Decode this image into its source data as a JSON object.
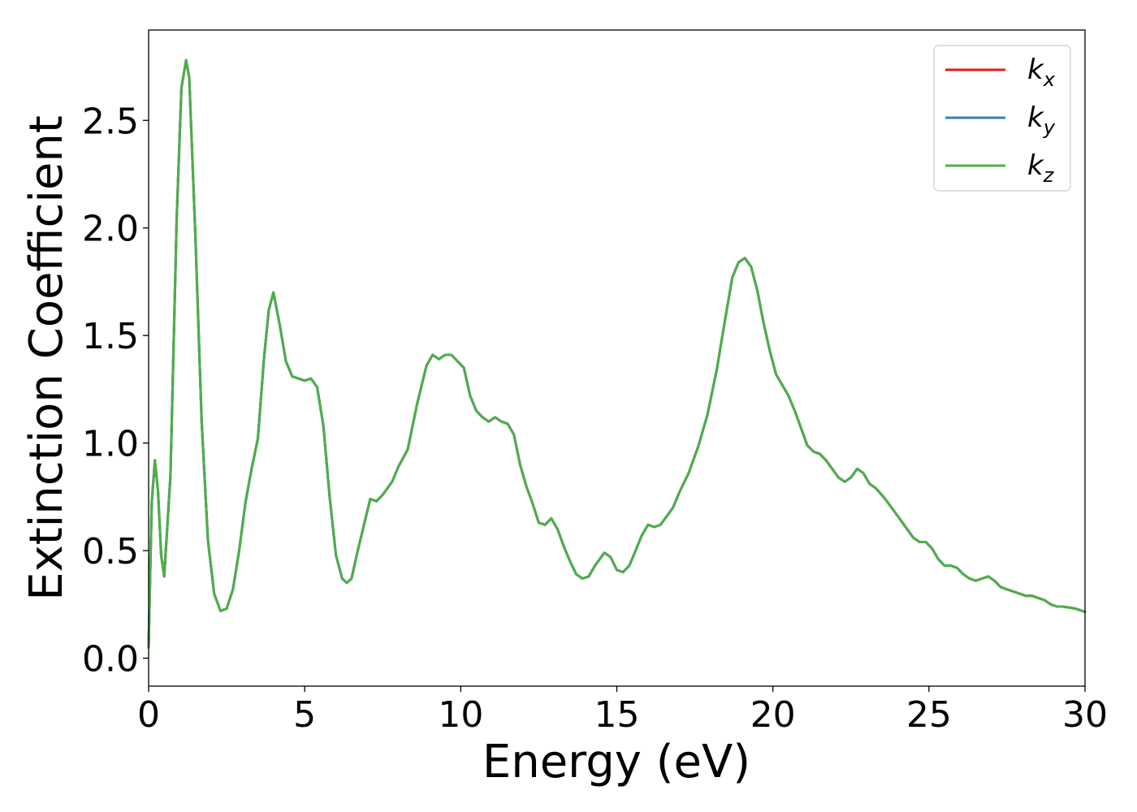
{
  "chart_data": {
    "type": "line",
    "xlabel": "Energy (eV)",
    "ylabel": "Extinction Coefficient",
    "xlim": [
      0,
      30
    ],
    "ylim": [
      -0.13,
      2.92
    ],
    "xticks": [
      0,
      5,
      10,
      15,
      20,
      25,
      30
    ],
    "xtick_labels": [
      "0",
      "5",
      "10",
      "15",
      "20",
      "25",
      "30"
    ],
    "yticks": [
      0.0,
      0.5,
      1.0,
      1.5,
      2.0,
      2.5
    ],
    "ytick_labels": [
      "0.0",
      "0.5",
      "1.0",
      "1.5",
      "2.0",
      "2.5"
    ],
    "grid": false,
    "legend_position": "top-right",
    "x": [
      0,
      0.1,
      0.2,
      0.3,
      0.4,
      0.5,
      0.7,
      0.9,
      1.05,
      1.2,
      1.3,
      1.5,
      1.7,
      1.9,
      2.1,
      2.3,
      2.5,
      2.7,
      2.9,
      3.1,
      3.3,
      3.5,
      3.7,
      3.85,
      4.0,
      4.2,
      4.4,
      4.6,
      4.8,
      5.0,
      5.2,
      5.4,
      5.6,
      5.8,
      6.0,
      6.2,
      6.35,
      6.5,
      6.7,
      6.9,
      7.1,
      7.3,
      7.5,
      7.8,
      8.0,
      8.3,
      8.6,
      8.9,
      9.1,
      9.3,
      9.5,
      9.7,
      9.9,
      10.1,
      10.3,
      10.5,
      10.7,
      10.9,
      11.1,
      11.3,
      11.5,
      11.7,
      11.9,
      12.1,
      12.3,
      12.5,
      12.7,
      12.9,
      13.1,
      13.3,
      13.5,
      13.7,
      13.9,
      14.1,
      14.3,
      14.6,
      14.8,
      15.0,
      15.2,
      15.4,
      15.6,
      15.8,
      16.0,
      16.2,
      16.4,
      16.6,
      16.8,
      17.0,
      17.3,
      17.6,
      17.9,
      18.2,
      18.5,
      18.7,
      18.9,
      19.1,
      19.3,
      19.5,
      19.7,
      19.9,
      20.1,
      20.3,
      20.5,
      20.7,
      20.9,
      21.1,
      21.3,
      21.5,
      21.7,
      21.9,
      22.1,
      22.3,
      22.5,
      22.7,
      22.9,
      23.1,
      23.3,
      23.6,
      23.9,
      24.2,
      24.5,
      24.7,
      24.9,
      25.1,
      25.3,
      25.5,
      25.7,
      25.9,
      26.1,
      26.3,
      26.5,
      26.7,
      26.9,
      27.1,
      27.3,
      27.5,
      27.7,
      27.9,
      28.1,
      28.3,
      28.5,
      28.7,
      28.9,
      29.1,
      29.3,
      29.5,
      29.7,
      30.0
    ],
    "series": [
      {
        "name": "x",
        "color": "#e41a1c",
        "values": [
          0.05,
          0.72,
          0.92,
          0.78,
          0.48,
          0.38,
          0.85,
          2.05,
          2.65,
          2.78,
          2.7,
          1.95,
          1.1,
          0.55,
          0.3,
          0.22,
          0.23,
          0.32,
          0.5,
          0.72,
          0.88,
          1.02,
          1.4,
          1.62,
          1.7,
          1.55,
          1.38,
          1.31,
          1.3,
          1.29,
          1.3,
          1.26,
          1.08,
          0.75,
          0.48,
          0.37,
          0.35,
          0.37,
          0.5,
          0.62,
          0.74,
          0.73,
          0.76,
          0.82,
          0.89,
          0.97,
          1.18,
          1.36,
          1.41,
          1.39,
          1.41,
          1.41,
          1.38,
          1.35,
          1.22,
          1.15,
          1.12,
          1.1,
          1.12,
          1.1,
          1.09,
          1.04,
          0.9,
          0.8,
          0.72,
          0.63,
          0.62,
          0.65,
          0.6,
          0.52,
          0.45,
          0.39,
          0.37,
          0.38,
          0.43,
          0.49,
          0.47,
          0.41,
          0.4,
          0.43,
          0.5,
          0.57,
          0.62,
          0.61,
          0.62,
          0.66,
          0.7,
          0.77,
          0.86,
          0.98,
          1.13,
          1.34,
          1.6,
          1.77,
          1.84,
          1.86,
          1.82,
          1.71,
          1.56,
          1.43,
          1.32,
          1.27,
          1.22,
          1.15,
          1.07,
          0.99,
          0.96,
          0.95,
          0.92,
          0.88,
          0.84,
          0.82,
          0.84,
          0.88,
          0.86,
          0.81,
          0.79,
          0.74,
          0.68,
          0.62,
          0.56,
          0.54,
          0.54,
          0.51,
          0.46,
          0.43,
          0.43,
          0.42,
          0.39,
          0.37,
          0.36,
          0.37,
          0.38,
          0.36,
          0.33,
          0.32,
          0.31,
          0.3,
          0.29,
          0.29,
          0.28,
          0.27,
          0.25,
          0.24,
          0.24,
          0.235,
          0.23,
          0.215
        ]
      },
      {
        "name": "y",
        "color": "#377eb8",
        "values": [
          0.05,
          0.72,
          0.92,
          0.78,
          0.48,
          0.38,
          0.85,
          2.05,
          2.65,
          2.78,
          2.7,
          1.95,
          1.1,
          0.55,
          0.3,
          0.22,
          0.23,
          0.32,
          0.5,
          0.72,
          0.88,
          1.02,
          1.4,
          1.62,
          1.7,
          1.55,
          1.38,
          1.31,
          1.3,
          1.29,
          1.3,
          1.26,
          1.08,
          0.75,
          0.48,
          0.37,
          0.35,
          0.37,
          0.5,
          0.62,
          0.74,
          0.73,
          0.76,
          0.82,
          0.89,
          0.97,
          1.18,
          1.36,
          1.41,
          1.39,
          1.41,
          1.41,
          1.38,
          1.35,
          1.22,
          1.15,
          1.12,
          1.1,
          1.12,
          1.1,
          1.09,
          1.04,
          0.9,
          0.8,
          0.72,
          0.63,
          0.62,
          0.65,
          0.6,
          0.52,
          0.45,
          0.39,
          0.37,
          0.38,
          0.43,
          0.49,
          0.47,
          0.41,
          0.4,
          0.43,
          0.5,
          0.57,
          0.62,
          0.61,
          0.62,
          0.66,
          0.7,
          0.77,
          0.86,
          0.98,
          1.13,
          1.34,
          1.6,
          1.77,
          1.84,
          1.86,
          1.82,
          1.71,
          1.56,
          1.43,
          1.32,
          1.27,
          1.22,
          1.15,
          1.07,
          0.99,
          0.96,
          0.95,
          0.92,
          0.88,
          0.84,
          0.82,
          0.84,
          0.88,
          0.86,
          0.81,
          0.79,
          0.74,
          0.68,
          0.62,
          0.56,
          0.54,
          0.54,
          0.51,
          0.46,
          0.43,
          0.43,
          0.42,
          0.39,
          0.37,
          0.36,
          0.37,
          0.38,
          0.36,
          0.33,
          0.32,
          0.31,
          0.3,
          0.29,
          0.29,
          0.28,
          0.27,
          0.25,
          0.24,
          0.24,
          0.235,
          0.23,
          0.215
        ]
      },
      {
        "name": "z",
        "color": "#4daf4a",
        "values": [
          0.05,
          0.72,
          0.92,
          0.78,
          0.48,
          0.38,
          0.85,
          2.05,
          2.65,
          2.78,
          2.7,
          1.95,
          1.1,
          0.55,
          0.3,
          0.22,
          0.23,
          0.32,
          0.5,
          0.72,
          0.88,
          1.02,
          1.4,
          1.62,
          1.7,
          1.55,
          1.38,
          1.31,
          1.3,
          1.29,
          1.3,
          1.26,
          1.08,
          0.75,
          0.48,
          0.37,
          0.35,
          0.37,
          0.5,
          0.62,
          0.74,
          0.73,
          0.76,
          0.82,
          0.89,
          0.97,
          1.18,
          1.36,
          1.41,
          1.39,
          1.41,
          1.41,
          1.38,
          1.35,
          1.22,
          1.15,
          1.12,
          1.1,
          1.12,
          1.1,
          1.09,
          1.04,
          0.9,
          0.8,
          0.72,
          0.63,
          0.62,
          0.65,
          0.6,
          0.52,
          0.45,
          0.39,
          0.37,
          0.38,
          0.43,
          0.49,
          0.47,
          0.41,
          0.4,
          0.43,
          0.5,
          0.57,
          0.62,
          0.61,
          0.62,
          0.66,
          0.7,
          0.77,
          0.86,
          0.98,
          1.13,
          1.34,
          1.6,
          1.77,
          1.84,
          1.86,
          1.82,
          1.71,
          1.56,
          1.43,
          1.32,
          1.27,
          1.22,
          1.15,
          1.07,
          0.99,
          0.96,
          0.95,
          0.92,
          0.88,
          0.84,
          0.82,
          0.84,
          0.88,
          0.86,
          0.81,
          0.79,
          0.74,
          0.68,
          0.62,
          0.56,
          0.54,
          0.54,
          0.51,
          0.46,
          0.43,
          0.43,
          0.42,
          0.39,
          0.37,
          0.36,
          0.37,
          0.38,
          0.36,
          0.33,
          0.32,
          0.31,
          0.3,
          0.29,
          0.29,
          0.28,
          0.27,
          0.25,
          0.24,
          0.24,
          0.235,
          0.23,
          0.215
        ]
      }
    ],
    "legend": [
      {
        "main": "k",
        "sub": "x",
        "color": "#e41a1c"
      },
      {
        "main": "k",
        "sub": "y",
        "color": "#377eb8"
      },
      {
        "main": "k",
        "sub": "z",
        "color": "#4daf4a"
      }
    ]
  }
}
